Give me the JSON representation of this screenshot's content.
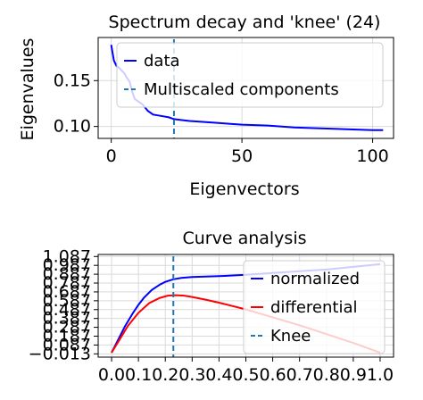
{
  "chart_data": [
    {
      "type": "line",
      "title": "Spectrum decay and 'knee' (24)",
      "xlabel": "Eigenvectors",
      "ylabel": "Eigenvalues",
      "xlim": [
        -5,
        108
      ],
      "ylim": [
        0.087,
        0.197
      ],
      "xticks": [
        0,
        50,
        100
      ],
      "yticks": [
        0.1,
        0.15
      ],
      "ytick_labels": [
        "0.10",
        "0.15"
      ],
      "grid": true,
      "legend_position": "upper-right",
      "series": [
        {
          "name": "data",
          "color": "#0000ff",
          "x": [
            0,
            1,
            2,
            3,
            4,
            5,
            6,
            7,
            8,
            9,
            10,
            12,
            14,
            16,
            18,
            20,
            22,
            24,
            27,
            30,
            35,
            40,
            45,
            50,
            60,
            70,
            80,
            90,
            100,
            104
          ],
          "y": [
            0.189,
            0.172,
            0.166,
            0.164,
            0.161,
            0.158,
            0.153,
            0.149,
            0.138,
            0.13,
            0.128,
            0.124,
            0.117,
            0.113,
            0.112,
            0.111,
            0.11,
            0.108,
            0.107,
            0.106,
            0.105,
            0.104,
            0.103,
            0.102,
            0.101,
            0.099,
            0.098,
            0.097,
            0.096,
            0.096
          ]
        }
      ],
      "vline": {
        "name": "Multiscaled components",
        "x": 24,
        "color": "#1f77b4"
      }
    },
    {
      "type": "line",
      "title": "Curve analysis",
      "xlim": [
        -0.05,
        1.05
      ],
      "ylim": [
        -0.05,
        1.11
      ],
      "xticks": [
        0.0,
        0.1,
        0.2,
        0.3,
        0.4,
        0.5,
        0.6,
        0.7,
        0.8,
        0.9,
        1.0
      ],
      "xtick_labels": [
        "0.0",
        "0.1",
        "0.2",
        "0.3",
        "0.4",
        "0.5",
        "0.6",
        "0.7",
        "0.8",
        "0.9",
        "1.0"
      ],
      "yticks": [
        -0.013,
        0.087,
        0.187,
        0.287,
        0.387,
        0.487,
        0.587,
        0.687,
        0.787,
        0.887,
        0.987,
        1.087
      ],
      "ytick_labels": [
        "−0.013",
        "0.087",
        "0.187",
        "0.287",
        "0.387",
        "0.487",
        "0.587",
        "0.687",
        "0.787",
        "0.887",
        "0.987",
        "1.087"
      ],
      "grid": true,
      "legend_position": "right",
      "series": [
        {
          "name": "normalized",
          "color": "#0000ff",
          "x": [
            0.0,
            0.02,
            0.05,
            0.08,
            0.1,
            0.12,
            0.15,
            0.18,
            0.2,
            0.23,
            0.26,
            0.3,
            0.35,
            0.4,
            0.5,
            0.6,
            0.7,
            0.8,
            0.9,
            1.0
          ],
          "y": [
            0.0,
            0.12,
            0.3,
            0.45,
            0.54,
            0.62,
            0.71,
            0.77,
            0.8,
            0.83,
            0.845,
            0.855,
            0.86,
            0.865,
            0.88,
            0.9,
            0.92,
            0.94,
            0.97,
            1.0
          ]
        },
        {
          "name": "differential",
          "color": "#ff0000",
          "x": [
            0.0,
            0.03,
            0.06,
            0.1,
            0.14,
            0.18,
            0.21,
            0.24,
            0.27,
            0.3,
            0.35,
            0.4,
            0.5,
            0.6,
            0.7,
            0.8,
            0.9,
            1.0
          ],
          "y": [
            0.0,
            0.15,
            0.3,
            0.45,
            0.56,
            0.62,
            0.645,
            0.65,
            0.645,
            0.63,
            0.6,
            0.565,
            0.49,
            0.4,
            0.31,
            0.21,
            0.11,
            0.0
          ]
        }
      ],
      "vline": {
        "name": "Knee",
        "x": 0.23,
        "color": "#1f77b4"
      }
    }
  ]
}
